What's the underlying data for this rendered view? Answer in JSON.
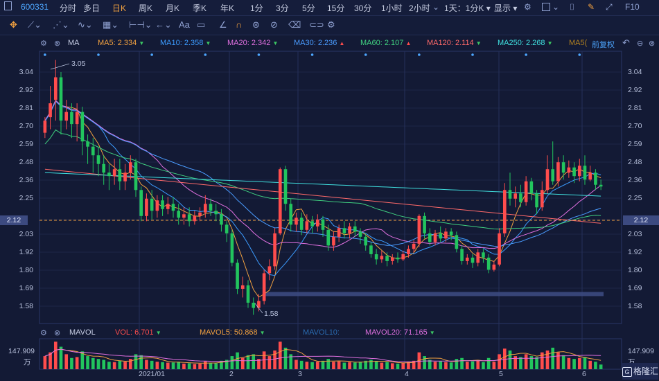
{
  "header": {
    "stock_code": "600331",
    "periods": [
      "分时",
      "多日",
      "日K",
      "周K",
      "月K",
      "季K",
      "年K",
      "1分",
      "3分",
      "5分",
      "15分",
      "30分",
      "1小时",
      "2小时"
    ],
    "active_period": "日K",
    "dropdown": "1天：1分K",
    "display_menu": "显示",
    "f10": "F10"
  },
  "ma_bar": {
    "label": "MA",
    "items": [
      {
        "text": "MA5: 2.334",
        "color": "#f0a040",
        "arrow": "▼",
        "arrow_color": "#3cc864"
      },
      {
        "text": "MA10: 2.358",
        "color": "#3c9cff",
        "arrow": "▼",
        "arrow_color": "#3cc864"
      },
      {
        "text": "MA20: 2.342",
        "color": "#e070e0",
        "arrow": "▼",
        "arrow_color": "#3cc864"
      },
      {
        "text": "MA30: 2.236",
        "color": "#4a9cff",
        "arrow": "▲",
        "arrow_color": "#ff4d4d"
      },
      {
        "text": "MA60: 2.107",
        "color": "#40d080",
        "arrow": "▲",
        "arrow_color": "#ff4d4d"
      },
      {
        "text": "MA120: 2.114",
        "color": "#ff6a6a",
        "arrow": "▼",
        "arrow_color": "#3cc864"
      },
      {
        "text": "MA250: 2.268",
        "color": "#40e0e0",
        "arrow": "▼",
        "arrow_color": "#3cc864"
      },
      {
        "text": "MA5(",
        "color": "#b08020",
        "arrow": "",
        "arrow_color": "#3cc864"
      }
    ],
    "adjust": "前复权"
  },
  "price_axis": {
    "ticks": [
      "3.04",
      "2.92",
      "2.81",
      "2.70",
      "2.59",
      "2.48",
      "2.36",
      "2.25",
      "2.12",
      "2.03",
      "1.92",
      "1.80",
      "1.69",
      "1.58"
    ],
    "current": "2.12"
  },
  "annotations": {
    "high": "3.05",
    "low": "1.58"
  },
  "volume_bar": {
    "label": "MAVOL",
    "items": [
      {
        "text": "VOL: 6.701",
        "color": "#ff4d4d",
        "arrow": "▼",
        "arrow_color": "#3cc864"
      },
      {
        "text": "MAVOL5: 50.868",
        "color": "#f0a040",
        "arrow": "▼",
        "arrow_color": "#3cc864"
      },
      {
        "text": "MAVOL10:",
        "color": "#2a6bb0",
        "arrow": "",
        "arrow_color": "#3cc864"
      },
      {
        "text": "MAVOL20: 71.165",
        "color": "#e070e0",
        "arrow": "▼",
        "arrow_color": "#3cc864"
      }
    ],
    "max_value": "147.909",
    "unit": "万"
  },
  "dates": [
    "2021/01",
    "2",
    "3",
    "4",
    "5",
    "6"
  ],
  "watermark": "格隆汇",
  "colors": {
    "up": "#ff4d4d",
    "down": "#22c55e",
    "bg": "#131a35",
    "grid": "#26305a"
  },
  "chart_data": {
    "type": "candlestick",
    "price_range": [
      1.53,
      3.1
    ],
    "volume_max": 147.909,
    "candles": [
      [
        2.63,
        2.7,
        2.72,
        2.6,
        70
      ],
      [
        2.72,
        2.8,
        2.9,
        2.65,
        90
      ],
      [
        2.82,
        2.95,
        3.05,
        2.7,
        147
      ],
      [
        2.95,
        2.7,
        2.98,
        2.62,
        120
      ],
      [
        2.7,
        2.75,
        2.82,
        2.65,
        80
      ],
      [
        2.75,
        2.68,
        2.8,
        2.6,
        60
      ],
      [
        2.68,
        2.75,
        2.8,
        2.58,
        65
      ],
      [
        2.75,
        2.58,
        2.78,
        2.5,
        95
      ],
      [
        2.58,
        2.55,
        2.62,
        2.45,
        70
      ],
      [
        2.55,
        2.5,
        2.6,
        2.4,
        60
      ],
      [
        2.5,
        2.45,
        2.55,
        2.38,
        55
      ],
      [
        2.45,
        2.4,
        2.5,
        2.33,
        50
      ],
      [
        2.4,
        2.38,
        2.45,
        2.3,
        40
      ],
      [
        2.38,
        2.42,
        2.48,
        2.33,
        38
      ],
      [
        2.42,
        2.35,
        2.48,
        2.3,
        45
      ],
      [
        2.35,
        2.4,
        2.45,
        2.3,
        40
      ],
      [
        2.4,
        2.46,
        2.5,
        2.36,
        55
      ],
      [
        2.46,
        2.3,
        2.48,
        2.26,
        80
      ],
      [
        2.3,
        2.15,
        2.32,
        2.12,
        75
      ],
      [
        2.15,
        2.25,
        2.28,
        2.12,
        50
      ],
      [
        2.25,
        2.18,
        2.3,
        2.13,
        45
      ],
      [
        2.18,
        2.24,
        2.27,
        2.14,
        40
      ],
      [
        2.24,
        2.19,
        2.27,
        2.15,
        38
      ],
      [
        2.19,
        2.22,
        2.26,
        2.16,
        35
      ],
      [
        2.22,
        2.18,
        2.26,
        2.14,
        36
      ],
      [
        2.18,
        2.14,
        2.22,
        2.1,
        40
      ],
      [
        2.14,
        2.16,
        2.2,
        2.1,
        30
      ],
      [
        2.16,
        2.12,
        2.2,
        2.09,
        32
      ],
      [
        2.12,
        2.15,
        2.18,
        2.1,
        28
      ],
      [
        2.15,
        2.17,
        2.2,
        2.12,
        30
      ],
      [
        2.17,
        2.22,
        2.27,
        2.14,
        42
      ],
      [
        2.22,
        2.18,
        2.25,
        2.15,
        35
      ],
      [
        2.18,
        2.16,
        2.22,
        2.12,
        32
      ],
      [
        2.16,
        2.1,
        2.19,
        2.06,
        45
      ],
      [
        2.1,
        2.05,
        2.12,
        2.0,
        50
      ],
      [
        2.05,
        1.88,
        2.07,
        1.86,
        70
      ],
      [
        1.88,
        1.73,
        1.9,
        1.7,
        90
      ],
      [
        1.73,
        1.75,
        1.8,
        1.68,
        60
      ],
      [
        1.75,
        1.65,
        1.78,
        1.62,
        75
      ],
      [
        1.65,
        1.62,
        1.68,
        1.58,
        80
      ],
      [
        1.62,
        1.66,
        1.7,
        1.6,
        55
      ],
      [
        1.66,
        1.82,
        1.84,
        1.64,
        95
      ],
      [
        1.82,
        1.86,
        1.9,
        1.78,
        70
      ],
      [
        1.86,
        2.05,
        2.08,
        1.84,
        100
      ],
      [
        2.05,
        2.42,
        2.43,
        2.04,
        147
      ],
      [
        2.42,
        2.22,
        2.44,
        2.18,
        115
      ],
      [
        2.22,
        2.1,
        2.25,
        2.06,
        80
      ],
      [
        2.1,
        2.14,
        2.17,
        2.06,
        50
      ],
      [
        2.14,
        2.07,
        2.17,
        2.04,
        45
      ],
      [
        2.07,
        2.12,
        2.16,
        2.05,
        40
      ],
      [
        2.12,
        2.09,
        2.15,
        2.05,
        38
      ],
      [
        2.09,
        2.13,
        2.16,
        2.06,
        40
      ],
      [
        2.13,
        2.07,
        2.15,
        2.03,
        45
      ],
      [
        2.07,
        1.98,
        2.1,
        1.95,
        55
      ],
      [
        1.98,
        2.03,
        2.06,
        1.95,
        40
      ],
      [
        2.03,
        2.08,
        2.1,
        2.0,
        42
      ],
      [
        2.08,
        2.05,
        2.12,
        2.02,
        35
      ],
      [
        2.05,
        2.09,
        2.11,
        2.02,
        38
      ],
      [
        2.09,
        2.06,
        2.12,
        2.03,
        36
      ],
      [
        2.06,
        2.03,
        2.08,
        1.99,
        40
      ],
      [
        2.03,
        1.98,
        2.05,
        1.95,
        45
      ],
      [
        1.98,
        1.93,
        2.0,
        1.91,
        50
      ],
      [
        1.93,
        1.9,
        1.96,
        1.87,
        42
      ],
      [
        1.9,
        1.92,
        1.95,
        1.88,
        35
      ],
      [
        1.92,
        1.89,
        1.94,
        1.86,
        38
      ],
      [
        1.89,
        1.91,
        1.93,
        1.87,
        32
      ],
      [
        1.91,
        1.9,
        1.94,
        1.88,
        30
      ],
      [
        1.9,
        1.93,
        1.95,
        1.89,
        34
      ],
      [
        1.93,
        1.96,
        1.98,
        1.91,
        40
      ],
      [
        1.96,
        1.99,
        2.01,
        1.94,
        45
      ],
      [
        1.99,
        2.15,
        2.16,
        1.97,
        90
      ],
      [
        2.15,
        2.05,
        2.17,
        2.02,
        70
      ],
      [
        2.05,
        2.0,
        2.08,
        1.98,
        50
      ],
      [
        2.0,
        2.05,
        2.07,
        1.98,
        40
      ],
      [
        2.05,
        2.02,
        2.09,
        2.0,
        42
      ],
      [
        2.02,
        2.06,
        2.08,
        2.0,
        38
      ],
      [
        2.06,
        2.04,
        2.08,
        2.01,
        36
      ],
      [
        2.04,
        1.96,
        2.06,
        1.94,
        55
      ],
      [
        1.96,
        1.89,
        1.98,
        1.87,
        60
      ],
      [
        1.89,
        1.91,
        1.93,
        1.87,
        40
      ],
      [
        1.91,
        1.88,
        1.93,
        1.85,
        42
      ],
      [
        1.88,
        1.94,
        1.96,
        1.86,
        45
      ],
      [
        1.94,
        1.91,
        1.96,
        1.88,
        38
      ],
      [
        1.91,
        1.84,
        1.93,
        1.82,
        60
      ],
      [
        1.84,
        1.87,
        1.89,
        1.83,
        40
      ],
      [
        1.87,
        2.05,
        2.08,
        1.86,
        80
      ],
      [
        2.05,
        2.3,
        2.34,
        2.03,
        110
      ],
      [
        2.3,
        2.25,
        2.4,
        2.21,
        100
      ],
      [
        2.25,
        2.28,
        2.32,
        2.2,
        70
      ],
      [
        2.28,
        2.23,
        2.33,
        2.2,
        65
      ],
      [
        2.23,
        2.35,
        2.38,
        2.21,
        80
      ],
      [
        2.35,
        2.28,
        2.37,
        2.24,
        70
      ],
      [
        2.28,
        2.2,
        2.3,
        2.16,
        65
      ],
      [
        2.2,
        2.3,
        2.35,
        2.18,
        90
      ],
      [
        2.3,
        2.42,
        2.5,
        2.28,
        100
      ],
      [
        2.42,
        2.35,
        2.58,
        2.33,
        115
      ],
      [
        2.35,
        2.46,
        2.49,
        2.32,
        90
      ],
      [
        2.46,
        2.4,
        2.5,
        2.36,
        75
      ],
      [
        2.4,
        2.43,
        2.47,
        2.37,
        60
      ],
      [
        2.43,
        2.38,
        2.46,
        2.34,
        55
      ],
      [
        2.38,
        2.44,
        2.48,
        2.35,
        60
      ],
      [
        2.44,
        2.36,
        2.5,
        2.33,
        65
      ],
      [
        2.36,
        2.4,
        2.44,
        2.35,
        45
      ],
      [
        2.4,
        2.33,
        2.42,
        2.3,
        40
      ],
      [
        2.33,
        2.32,
        2.36,
        2.3,
        25
      ]
    ]
  }
}
